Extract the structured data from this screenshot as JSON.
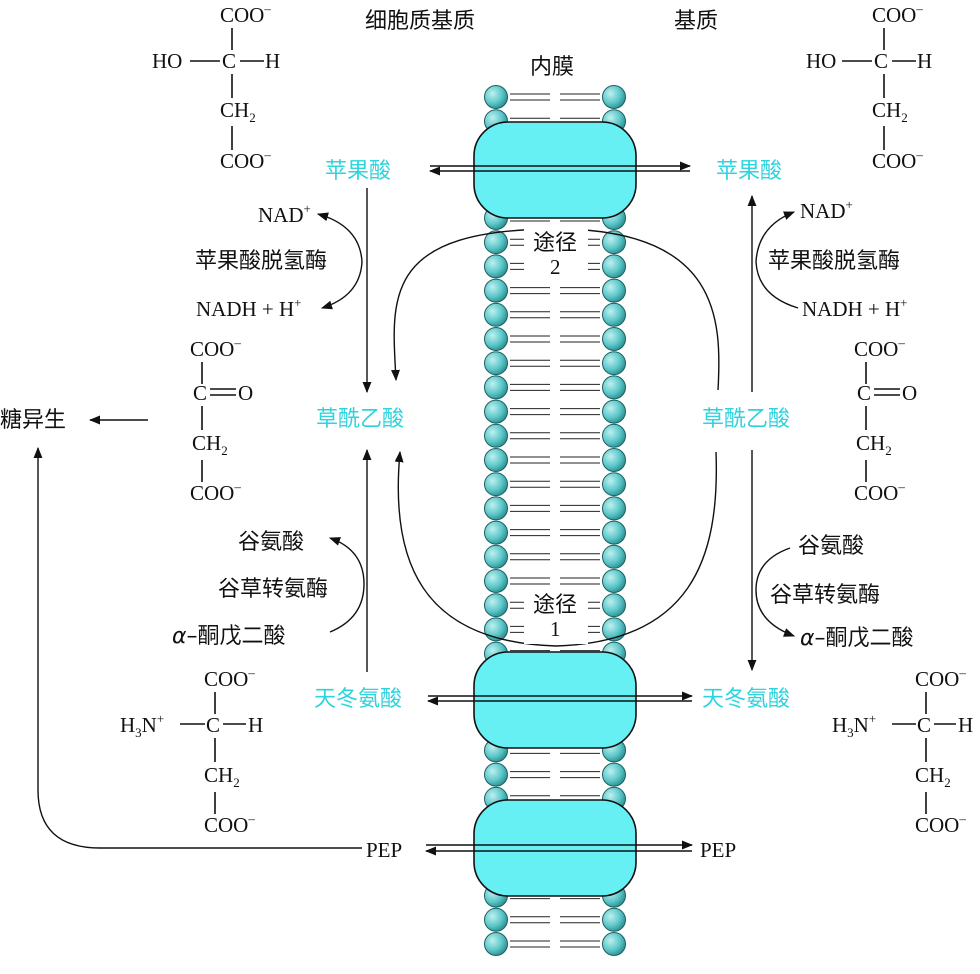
{
  "header": {
    "cytoplasm_label": "细胞质基质",
    "matrix_label": "基质",
    "membrane_label": "内膜"
  },
  "metabolites": {
    "malate": "苹果酸",
    "oxaloacetate": "草酰乙酸",
    "aspartate": "天冬氨酸",
    "pep": "PEP",
    "gluconeogenesis": "糖异生"
  },
  "cofactors": {
    "nad_base": "NAD",
    "nad_sup": "+",
    "nadh_base": "NADH + H",
    "nadh_sup": "+",
    "glutamate": "谷氨酸",
    "alpha": "α",
    "ketoglutarate_rest": "–酮戊二酸"
  },
  "enzymes": {
    "malate_dehydrogenase": "苹果酸脱氢酶",
    "aspartate_aminotransferase": "谷草转氨酶"
  },
  "pathways": {
    "route_word": "途径",
    "route1_number": "1",
    "route2_number": "2"
  },
  "structures": {
    "carboxylate": "COO",
    "minus": "–",
    "ho": "HO",
    "h": "H",
    "c": "C",
    "ch": "CH",
    "sub2": "2",
    "ketone_o": "O",
    "h3n": "H",
    "sub3": "3",
    "n": "N",
    "plus": "+"
  },
  "colors": {
    "highlight_text": "#2fd3dd",
    "transporter_fill": "#66f0f4",
    "lipid_head_fill": "#5cc7c9"
  }
}
